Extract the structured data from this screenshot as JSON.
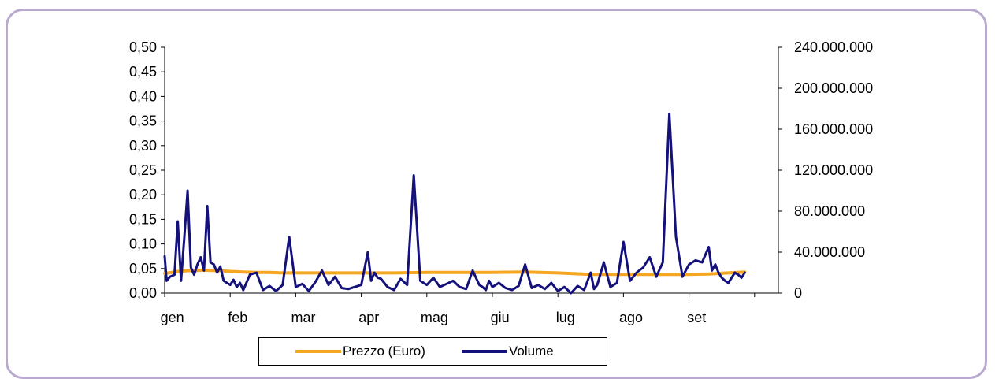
{
  "chart_data": {
    "type": "line",
    "title": "",
    "x_categories": [
      "gen",
      "feb",
      "mar",
      "apr",
      "mag",
      "giu",
      "lug",
      "ago",
      "set"
    ],
    "left_axis": {
      "range": [
        0,
        0.5
      ],
      "ticks": [
        "0,00",
        "0,05",
        "0,10",
        "0,15",
        "0,20",
        "0,25",
        "0,30",
        "0,35",
        "0,40",
        "0,45",
        "0,50"
      ]
    },
    "right_axis": {
      "range": [
        0,
        240000000
      ],
      "ticks": [
        "0",
        "40.000.000",
        "80.000.000",
        "120.000.000",
        "160.000.000",
        "200.000.000",
        "240.000.000"
      ]
    },
    "grid": false,
    "legend_position": "bottom",
    "series": [
      {
        "name": "Prezzo (Euro)",
        "axis": "left",
        "color": "#f5a623",
        "x": [
          0,
          0.1,
          0.2,
          0.3,
          0.4,
          0.5,
          0.6,
          0.7,
          0.8,
          0.9,
          1.0,
          1.2,
          1.4,
          1.6,
          1.8,
          2.0,
          2.5,
          3.0,
          3.5,
          4.0,
          4.5,
          5.0,
          5.5,
          6.0,
          6.5,
          7.0,
          7.5,
          8.0,
          8.3,
          8.6,
          8.85
        ],
        "values": [
          0.04,
          0.042,
          0.044,
          0.045,
          0.046,
          0.046,
          0.047,
          0.046,
          0.046,
          0.045,
          0.044,
          0.043,
          0.042,
          0.042,
          0.041,
          0.041,
          0.041,
          0.041,
          0.041,
          0.042,
          0.042,
          0.042,
          0.043,
          0.041,
          0.038,
          0.038,
          0.038,
          0.038,
          0.039,
          0.041,
          0.043
        ]
      },
      {
        "name": "Volume",
        "axis": "right",
        "color": "#14127a",
        "x": [
          0,
          0.03,
          0.08,
          0.15,
          0.2,
          0.25,
          0.3,
          0.35,
          0.4,
          0.45,
          0.5,
          0.55,
          0.6,
          0.65,
          0.7,
          0.75,
          0.8,
          0.85,
          0.9,
          0.95,
          1.0,
          1.05,
          1.1,
          1.15,
          1.2,
          1.3,
          1.4,
          1.5,
          1.6,
          1.7,
          1.8,
          1.9,
          2.0,
          2.1,
          2.2,
          2.3,
          2.4,
          2.5,
          2.6,
          2.7,
          2.8,
          2.9,
          3.0,
          3.1,
          3.15,
          3.2,
          3.25,
          3.3,
          3.4,
          3.5,
          3.6,
          3.7,
          3.8,
          3.9,
          4.0,
          4.1,
          4.2,
          4.3,
          4.4,
          4.5,
          4.6,
          4.7,
          4.8,
          4.85,
          4.9,
          4.95,
          5.0,
          5.1,
          5.2,
          5.3,
          5.4,
          5.5,
          5.6,
          5.7,
          5.8,
          5.9,
          6.0,
          6.1,
          6.2,
          6.3,
          6.4,
          6.5,
          6.55,
          6.6,
          6.7,
          6.8,
          6.9,
          7.0,
          7.1,
          7.2,
          7.3,
          7.4,
          7.5,
          7.6,
          7.7,
          7.8,
          7.9,
          8.0,
          8.1,
          8.2,
          8.3,
          8.35,
          8.4,
          8.45,
          8.5,
          8.55,
          8.6,
          8.65,
          8.7,
          8.75,
          8.8,
          8.85
        ],
        "values": [
          36000000,
          12000000,
          16000000,
          18000000,
          70000000,
          12000000,
          55000000,
          100000000,
          25000000,
          18000000,
          28000000,
          35000000,
          22000000,
          85000000,
          30000000,
          28000000,
          20000000,
          26000000,
          12000000,
          10000000,
          8000000,
          13000000,
          6000000,
          10000000,
          3000000,
          18000000,
          20000000,
          3000000,
          7000000,
          2000000,
          8000000,
          55000000,
          6000000,
          9000000,
          2000000,
          11000000,
          22000000,
          8000000,
          16000000,
          5000000,
          4000000,
          6000000,
          8000000,
          40000000,
          12000000,
          20000000,
          15000000,
          14000000,
          6000000,
          3000000,
          14000000,
          8000000,
          115000000,
          12000000,
          8000000,
          15000000,
          6000000,
          9000000,
          12000000,
          6000000,
          4000000,
          22000000,
          8000000,
          6000000,
          3000000,
          12000000,
          6000000,
          10000000,
          5000000,
          3000000,
          7000000,
          28000000,
          5000000,
          8000000,
          4000000,
          10000000,
          2000000,
          6000000,
          0,
          7000000,
          3000000,
          20000000,
          4000000,
          8000000,
          30000000,
          6000000,
          10000000,
          50000000,
          12000000,
          20000000,
          25000000,
          35000000,
          16000000,
          30000000,
          175000000,
          55000000,
          16000000,
          28000000,
          32000000,
          30000000,
          45000000,
          22000000,
          28000000,
          20000000,
          15000000,
          12000000,
          10000000,
          15000000,
          20000000,
          18000000,
          15000000,
          20000000
        ]
      }
    ]
  }
}
